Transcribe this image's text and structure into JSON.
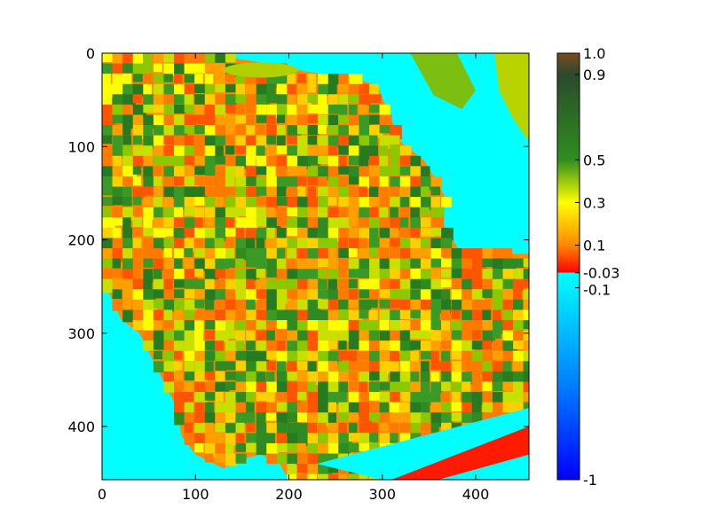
{
  "chart_data": {
    "type": "heatmap",
    "title": "",
    "xlabel": "",
    "ylabel": "",
    "xlim": [
      0,
      457
    ],
    "ylim": [
      457,
      0
    ],
    "x_ticks": [
      {
        "value": 0,
        "label": "0"
      },
      {
        "value": 100,
        "label": "100"
      },
      {
        "value": 200,
        "label": "200"
      },
      {
        "value": 300,
        "label": "300"
      },
      {
        "value": 400,
        "label": "400"
      }
    ],
    "y_ticks": [
      {
        "value": 0,
        "label": "0"
      },
      {
        "value": 100,
        "label": "100"
      },
      {
        "value": 200,
        "label": "200"
      },
      {
        "value": 300,
        "label": "300"
      },
      {
        "value": 400,
        "label": "400"
      }
    ],
    "colorbar": {
      "range": [
        -1,
        1
      ],
      "ticks": [
        {
          "value": 1.0,
          "label": "1.0"
        },
        {
          "value": 0.9,
          "label": "0.9"
        },
        {
          "value": 0.5,
          "label": "0.5"
        },
        {
          "value": 0.3,
          "label": "0.3"
        },
        {
          "value": 0.1,
          "label": "0.1"
        },
        {
          "value": -0.03,
          "label": "-0.03"
        },
        {
          "value": -0.1,
          "label": "-0.1"
        },
        {
          "value": -1,
          "label": "-1"
        }
      ],
      "colors": [
        {
          "value": -1.0,
          "color": "#0000ff"
        },
        {
          "value": -0.55,
          "color": "#0080ff"
        },
        {
          "value": -0.03,
          "color": "#00ffff"
        },
        {
          "value": -0.0299,
          "color": "#ff0000"
        },
        {
          "value": 0.1,
          "color": "#ff8800"
        },
        {
          "value": 0.3,
          "color": "#ffff00"
        },
        {
          "value": 0.5,
          "color": "#2f8f1f"
        },
        {
          "value": 0.9,
          "color": "#2b4a2c"
        },
        {
          "value": 1.0,
          "color": "#7a4a1e"
        }
      ]
    },
    "regions": {
      "water_color": "#00ffff",
      "land_palette": [
        "#ff5500",
        "#ff7a00",
        "#ffa000",
        "#ffd000",
        "#ffff00",
        "#c8e000",
        "#8cc800",
        "#3a9a26",
        "#2f8a22",
        "#267a20"
      ]
    }
  }
}
